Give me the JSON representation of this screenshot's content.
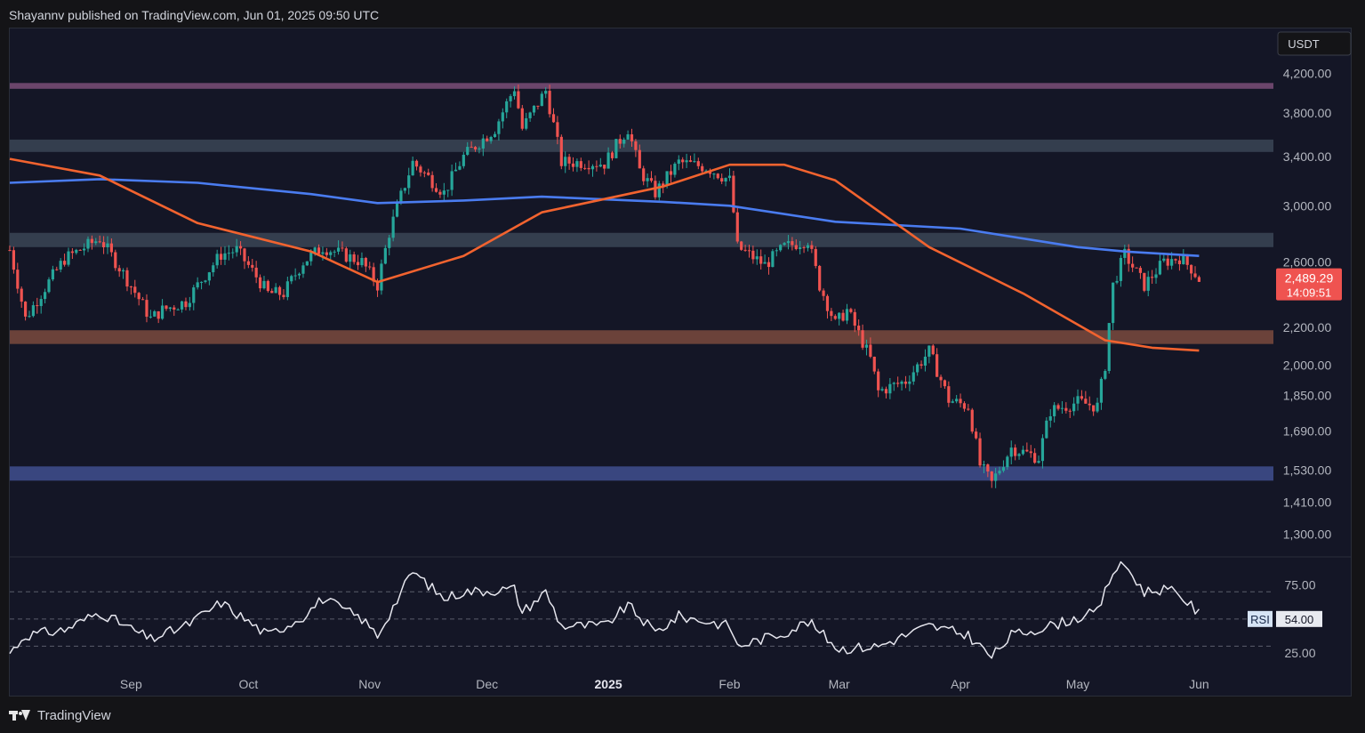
{
  "header": {
    "publisher": "Shayannv published on TradingView.com, Jun 01, 2025 09:50 UTC"
  },
  "footer": {
    "brand": "TradingView",
    "logo_icon": "tradingview-logo-icon"
  },
  "colors": {
    "up": "#26a69a",
    "down": "#ef5350",
    "ma_blue": "#4a7cf0",
    "ma_orange": "#f2632f",
    "zone_purple": "#7a4e78",
    "zone_gray": "#3a4556",
    "zone_brown": "#7a4a3e",
    "zone_blue": "#3f4f8f",
    "background": "#141626"
  },
  "chart_data": [
    {
      "type": "candlestick",
      "currency_label": "USDT",
      "y_tick_labels": [
        "4,200.00",
        "3,800.00",
        "3,400.00",
        "3,000.00",
        "2,600.00",
        "2,200.00",
        "2,000.00",
        "1,850.00",
        "1,690.00",
        "1,530.00",
        "1,410.00",
        "1,300.00"
      ],
      "y_ticks": [
        4200,
        3800,
        3400,
        3000,
        2600,
        2200,
        2000,
        1850,
        1690,
        1530,
        1410,
        1300
      ],
      "ylim": [
        1230,
        4700
      ],
      "y_scale": "log",
      "x_tick_labels": [
        "Sep",
        "Oct",
        "Nov",
        "Dec",
        "2025",
        "Feb",
        "Mar",
        "Apr",
        "May",
        "Jun"
      ],
      "x_ticks": [
        "2024-09-01",
        "2024-10-01",
        "2024-11-01",
        "2024-12-01",
        "2025-01-01",
        "2025-02-01",
        "2025-03-01",
        "2025-04-01",
        "2025-05-01",
        "2025-06-01"
      ],
      "date_range": [
        "2024-08-01",
        "2025-06-20"
      ],
      "last_price": {
        "value": 2489.29,
        "label": "2,489.29",
        "countdown": "14:09:51"
      },
      "zones": [
        {
          "low": 4040,
          "high": 4100,
          "color": "zone_purple"
        },
        {
          "low": 3440,
          "high": 3550,
          "color": "zone_gray"
        },
        {
          "low": 2700,
          "high": 2800,
          "color": "zone_gray"
        },
        {
          "low": 2110,
          "high": 2185,
          "color": "zone_brown"
        },
        {
          "low": 1490,
          "high": 1545,
          "color": "zone_blue"
        }
      ],
      "ohlc_anchors": [
        [
          "2024-08-01",
          2680
        ],
        [
          "2024-08-05",
          2250
        ],
        [
          "2024-08-15",
          2620
        ],
        [
          "2024-08-24",
          2760
        ],
        [
          "2024-09-06",
          2250
        ],
        [
          "2024-09-09",
          2300
        ],
        [
          "2024-09-15",
          2350
        ],
        [
          "2024-09-24",
          2650
        ],
        [
          "2024-09-28",
          2680
        ],
        [
          "2024-10-06",
          2400
        ],
        [
          "2024-10-10",
          2400
        ],
        [
          "2024-10-15",
          2600
        ],
        [
          "2024-10-20",
          2700
        ],
        [
          "2024-10-30",
          2600
        ],
        [
          "2024-11-03",
          2450
        ],
        [
          "2024-11-06",
          2800
        ],
        [
          "2024-11-12",
          3350
        ],
        [
          "2024-11-20",
          3100
        ],
        [
          "2024-11-25",
          3400
        ],
        [
          "2024-12-03",
          3650
        ],
        [
          "2024-12-08",
          4050
        ],
        [
          "2024-12-10",
          3650
        ],
        [
          "2024-12-16",
          4020
        ],
        [
          "2024-12-20",
          3350
        ],
        [
          "2024-12-27",
          3350
        ],
        [
          "2024-12-31",
          3340
        ],
        [
          "2025-01-06",
          3650
        ],
        [
          "2025-01-09",
          3280
        ],
        [
          "2025-01-13",
          3100
        ],
        [
          "2025-01-19",
          3350
        ],
        [
          "2025-01-26",
          3310
        ],
        [
          "2025-02-01",
          3200
        ],
        [
          "2025-02-03",
          2700
        ],
        [
          "2025-02-10",
          2580
        ],
        [
          "2025-02-15",
          2700
        ],
        [
          "2025-02-21",
          2750
        ],
        [
          "2025-02-24",
          2450
        ],
        [
          "2025-02-28",
          2220
        ],
        [
          "2025-03-03",
          2300
        ],
        [
          "2025-03-09",
          2030
        ],
        [
          "2025-03-11",
          1870
        ],
        [
          "2025-03-18",
          1920
        ],
        [
          "2025-03-24",
          2070
        ],
        [
          "2025-03-29",
          1830
        ],
        [
          "2025-04-03",
          1800
        ],
        [
          "2025-04-06",
          1550
        ],
        [
          "2025-04-09",
          1480
        ],
        [
          "2025-04-14",
          1620
        ],
        [
          "2025-04-21",
          1580
        ],
        [
          "2025-04-24",
          1780
        ],
        [
          "2025-05-01",
          1820
        ],
        [
          "2025-05-06",
          1800
        ],
        [
          "2025-05-08",
          2000
        ],
        [
          "2025-05-10",
          2450
        ],
        [
          "2025-05-13",
          2650
        ],
        [
          "2025-05-18",
          2450
        ],
        [
          "2025-05-23",
          2600
        ],
        [
          "2025-05-27",
          2630
        ],
        [
          "2025-05-30",
          2560
        ],
        [
          "2025-06-01",
          2489
        ]
      ],
      "lines": [
        {
          "color": "ma_blue",
          "points": [
            [
              "2024-08-01",
              3180
            ],
            [
              "2024-08-24",
              3210
            ],
            [
              "2024-09-18",
              3180
            ],
            [
              "2024-10-17",
              3090
            ],
            [
              "2024-11-03",
              3020
            ],
            [
              "2024-11-25",
              3040
            ],
            [
              "2024-12-15",
              3070
            ],
            [
              "2025-01-15",
              3030
            ],
            [
              "2025-02-01",
              3000
            ],
            [
              "2025-02-28",
              2880
            ],
            [
              "2025-04-01",
              2830
            ],
            [
              "2025-05-01",
              2700
            ],
            [
              "2025-05-13",
              2670
            ],
            [
              "2025-06-01",
              2640
            ]
          ]
        },
        {
          "color": "ma_orange",
          "points": [
            [
              "2024-08-01",
              3380
            ],
            [
              "2024-08-24",
              3240
            ],
            [
              "2024-09-18",
              2870
            ],
            [
              "2024-10-17",
              2670
            ],
            [
              "2024-11-03",
              2470
            ],
            [
              "2024-11-25",
              2640
            ],
            [
              "2024-12-15",
              2950
            ],
            [
              "2025-01-15",
              3150
            ],
            [
              "2025-02-01",
              3330
            ],
            [
              "2025-02-15",
              3330
            ],
            [
              "2025-02-28",
              3200
            ],
            [
              "2025-03-24",
              2700
            ],
            [
              "2025-04-17",
              2400
            ],
            [
              "2025-05-08",
              2130
            ],
            [
              "2025-05-20",
              2090
            ],
            [
              "2025-06-01",
              2075
            ]
          ]
        }
      ]
    },
    {
      "type": "line",
      "name": "RSI",
      "value_label": "54.00",
      "y_ticks": [
        75,
        25
      ],
      "y_tick_labels": [
        "75.00",
        "25.00"
      ],
      "ylim": [
        10,
        95
      ],
      "guide_levels": [
        70,
        50,
        30
      ],
      "anchors": [
        [
          "2024-08-01",
          25
        ],
        [
          "2024-08-05",
          38
        ],
        [
          "2024-08-15",
          42
        ],
        [
          "2024-08-24",
          55
        ],
        [
          "2024-09-06",
          35
        ],
        [
          "2024-09-15",
          45
        ],
        [
          "2024-09-24",
          62
        ],
        [
          "2024-10-06",
          38
        ],
        [
          "2024-10-15",
          52
        ],
        [
          "2024-10-20",
          65
        ],
        [
          "2024-10-30",
          50
        ],
        [
          "2024-11-03",
          38
        ],
        [
          "2024-11-12",
          85
        ],
        [
          "2024-11-20",
          65
        ],
        [
          "2024-11-25",
          70
        ],
        [
          "2024-12-08",
          72
        ],
        [
          "2024-12-10",
          55
        ],
        [
          "2024-12-16",
          70
        ],
        [
          "2024-12-20",
          45
        ],
        [
          "2024-12-31",
          45
        ],
        [
          "2025-01-06",
          60
        ],
        [
          "2025-01-13",
          40
        ],
        [
          "2025-01-19",
          52
        ],
        [
          "2025-02-01",
          45
        ],
        [
          "2025-02-03",
          30
        ],
        [
          "2025-02-15",
          40
        ],
        [
          "2025-02-21",
          48
        ],
        [
          "2025-03-01",
          28
        ],
        [
          "2025-03-11",
          30
        ],
        [
          "2025-03-24",
          45
        ],
        [
          "2025-04-03",
          38
        ],
        [
          "2025-04-09",
          22
        ],
        [
          "2025-04-14",
          38
        ],
        [
          "2025-04-24",
          45
        ],
        [
          "2025-05-06",
          55
        ],
        [
          "2025-05-10",
          85
        ],
        [
          "2025-05-13",
          90
        ],
        [
          "2025-05-18",
          70
        ],
        [
          "2025-05-23",
          72
        ],
        [
          "2025-05-27",
          68
        ],
        [
          "2025-06-01",
          54
        ]
      ]
    }
  ]
}
